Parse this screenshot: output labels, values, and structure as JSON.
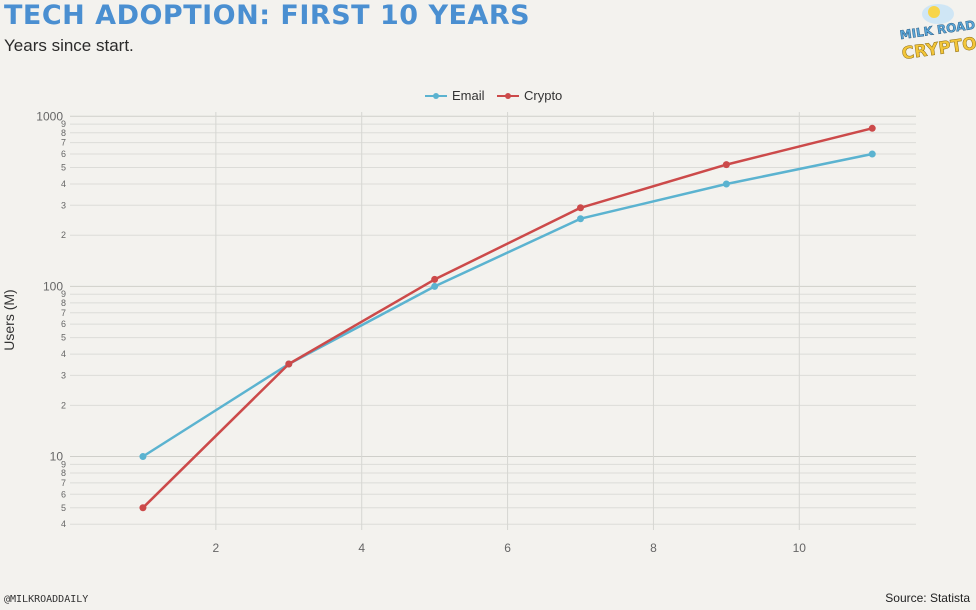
{
  "header": {
    "title": "TECH ADOPTION: FIRST 10 YEARS",
    "subtitle": "Years since start."
  },
  "logo": {
    "line1": "MILK ROAD",
    "line2": "CRYPTO"
  },
  "footer": {
    "handle": "@MILKROADDAILY",
    "source": "Source: Statista"
  },
  "colors": {
    "email": "#5bb3d0",
    "crypto": "#cc4a4a",
    "title": "#4a8fd1",
    "logo": "#f3c63a"
  },
  "chart_data": {
    "type": "line",
    "ylabel": "Users (M)",
    "xlabel": "",
    "yscale": "log",
    "ylim": [
      3.7,
      1060
    ],
    "xlim": [
      0.0,
      11.6
    ],
    "x_ticks": [
      2,
      4,
      6,
      8,
      10
    ],
    "y_major_ticks": [
      10,
      100,
      1000
    ],
    "y_minor_ticks": [
      4,
      5,
      6,
      7,
      8,
      9,
      20,
      30,
      40,
      50,
      60,
      70,
      80,
      90,
      200,
      300,
      400,
      500,
      600,
      700,
      800,
      900
    ],
    "grid": true,
    "legend_position": "top-center",
    "series": [
      {
        "name": "Email",
        "x": [
          1,
          3,
          5,
          7,
          9,
          11
        ],
        "values": [
          10,
          35,
          100,
          250,
          400,
          600
        ]
      },
      {
        "name": "Crypto",
        "x": [
          1,
          3,
          5,
          7,
          9,
          11
        ],
        "values": [
          5,
          35,
          110,
          290,
          520,
          850
        ]
      }
    ]
  }
}
